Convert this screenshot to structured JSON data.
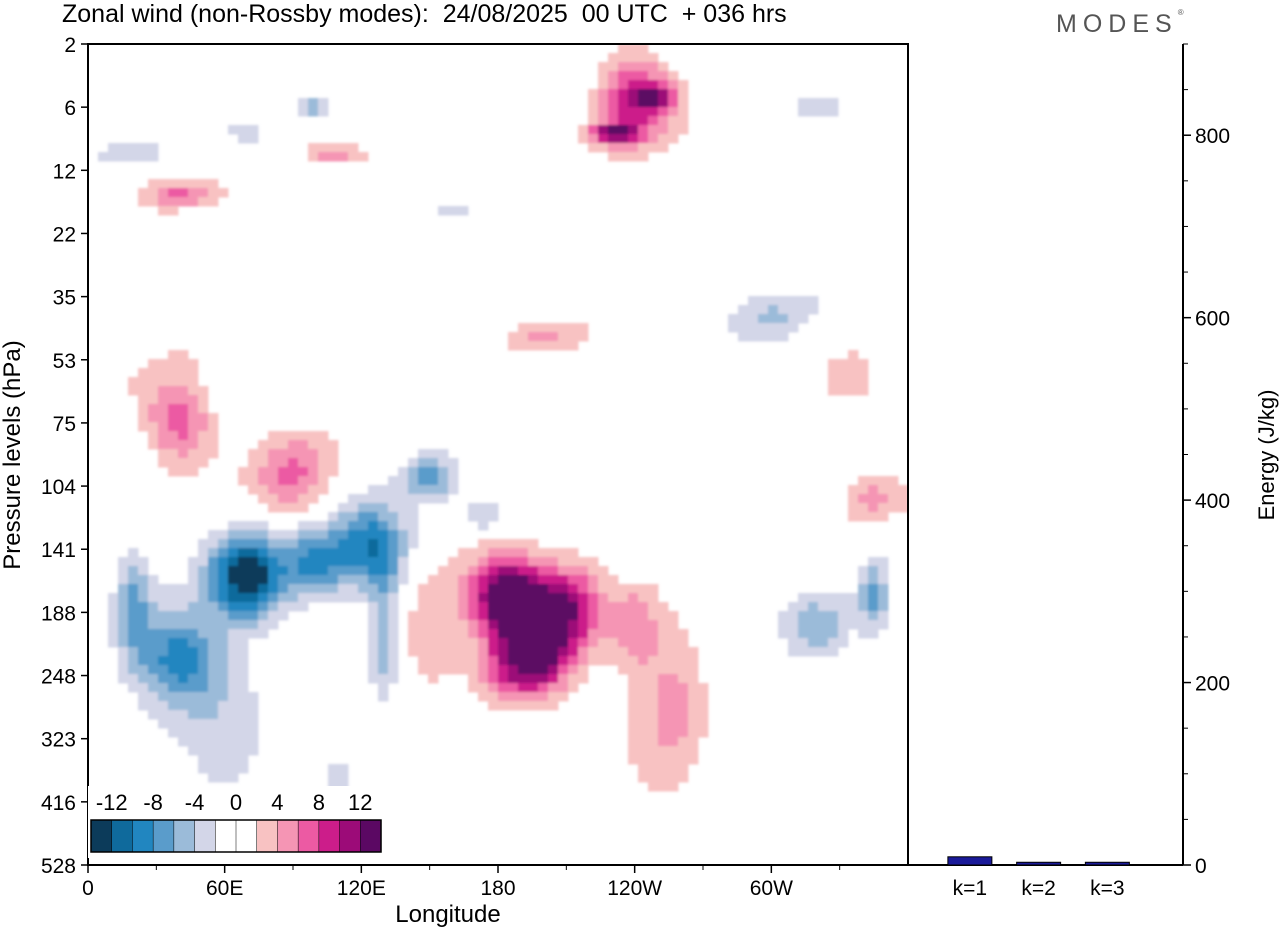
{
  "header": {
    "title": "Zonal wind (non-Rossby modes):  24/08/2025  00 UTC  + 036 hrs",
    "logo": "MODES",
    "logo_mark": "®"
  },
  "chart_data": [
    {
      "type": "heatmap",
      "title": "Zonal wind (non-Rossby modes):  24/08/2025  00 UTC  + 036 hrs",
      "xlabel": "Longitude",
      "ylabel": "Pressure levels (hPa)",
      "x_ticks": [
        "0",
        "60E",
        "120E",
        "180",
        "120W",
        "60W"
      ],
      "x_tick_degrees": [
        0,
        60,
        120,
        180,
        240,
        300
      ],
      "x_range_degrees": [
        0,
        360
      ],
      "y_ticks": [
        "2",
        "6",
        "12",
        "22",
        "35",
        "53",
        "75",
        "104",
        "141",
        "188",
        "248",
        "323",
        "416",
        "528"
      ],
      "colorbar": {
        "labels": [
          "-12",
          "-8",
          "-4",
          "0",
          "4",
          "8",
          "12"
        ],
        "label_values": [
          -12,
          -8,
          -4,
          0,
          4,
          8,
          12
        ],
        "levels": [
          -14,
          -12,
          -10,
          -8,
          -6,
          -4,
          -2,
          0,
          2,
          4,
          6,
          8,
          10,
          12,
          14
        ],
        "colors": [
          "#0c3b5a",
          "#0f6a9c",
          "#2186c0",
          "#5a9ccb",
          "#9bbbd9",
          "#d3d6e8",
          "#ffffff",
          "#ffffff",
          "#f8c2c2",
          "#f595b4",
          "#ec5aa3",
          "#cc1d8a",
          "#9c0b78",
          "#5b0863"
        ]
      },
      "features": [
        {
          "name": "negative jet core",
          "lon": 70,
          "pressure_hPa": 160,
          "value": -14
        },
        {
          "name": "negative band 125E",
          "lon": 125,
          "pressure_hPa": 140,
          "value": -10
        },
        {
          "name": "positive jet core",
          "lon": 183,
          "pressure_hPa": 175,
          "value": 14
        },
        {
          "name": "positive core 45E",
          "lon": 40,
          "pressure_hPa": 75,
          "value": 8
        },
        {
          "name": "positive core 90E",
          "lon": 90,
          "pressure_hPa": 100,
          "value": 6
        },
        {
          "name": "upper positive core",
          "lon": 240,
          "pressure_hPa": 5,
          "value": 10
        }
      ]
    },
    {
      "type": "bar",
      "categories": [
        "k=1",
        "k=2",
        "k=3"
      ],
      "values": [
        9,
        3,
        3
      ],
      "ylabel": "Energy (J/kg)",
      "y_ticks": [
        "0",
        "200",
        "400",
        "600",
        "800"
      ],
      "ylim": [
        0,
        900
      ],
      "bar_colors": [
        "#1a1a99",
        "#1a1a99",
        "#1a1a99"
      ]
    }
  ]
}
